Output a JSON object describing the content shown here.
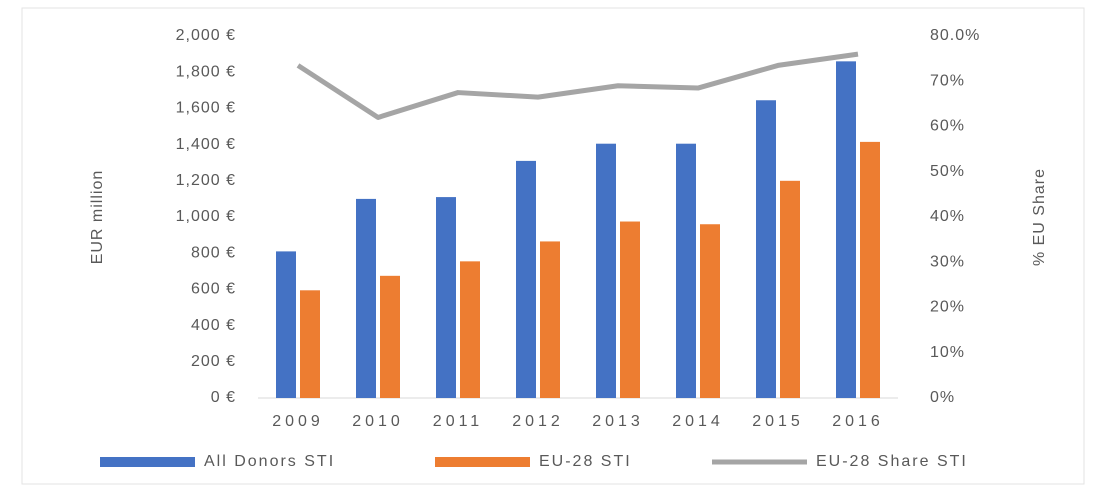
{
  "chart_data": {
    "type": "bar",
    "categories": [
      "2009",
      "2010",
      "2011",
      "2012",
      "2013",
      "2014",
      "2015",
      "2016"
    ],
    "series": [
      {
        "name": "All Donors STI",
        "color": "#4472c4",
        "type": "bar",
        "values": [
          810,
          1100,
          1110,
          1310,
          1405,
          1405,
          1645,
          1860
        ]
      },
      {
        "name": "EU-28 STI",
        "color": "#ed7d31",
        "type": "bar",
        "values": [
          595,
          675,
          755,
          865,
          975,
          960,
          1200,
          1415
        ]
      },
      {
        "name": "EU-28 Share STI",
        "color": "#a5a5a5",
        "type": "line",
        "axis": "y2",
        "values": [
          73.5,
          62,
          67.5,
          66.5,
          69,
          68.5,
          73.5,
          76
        ]
      }
    ],
    "y_label": "EUR million",
    "y2_label": "% EU Share",
    "ylim": [
      0,
      2000
    ],
    "yticks": [
      {
        "value": 0,
        "label": "0 €"
      },
      {
        "value": 200,
        "label": "200 €"
      },
      {
        "value": 400,
        "label": "400 €"
      },
      {
        "value": 600,
        "label": "600 €"
      },
      {
        "value": 800,
        "label": "800 €"
      },
      {
        "value": 1000,
        "label": "1,000 €"
      },
      {
        "value": 1200,
        "label": "1,200 €"
      },
      {
        "value": 1400,
        "label": "1,400 €"
      },
      {
        "value": 1600,
        "label": "1,600 €"
      },
      {
        "value": 1800,
        "label": "1,800 €"
      },
      {
        "value": 2000,
        "label": "2,000 €"
      }
    ],
    "y2lim": [
      0,
      80
    ],
    "y2ticks": [
      {
        "value": 0,
        "label": "0%"
      },
      {
        "value": 10,
        "label": "10%"
      },
      {
        "value": 20,
        "label": "20%"
      },
      {
        "value": 30,
        "label": "30%"
      },
      {
        "value": 40,
        "label": "40%"
      },
      {
        "value": 50,
        "label": "50%"
      },
      {
        "value": 60,
        "label": "60%"
      },
      {
        "value": 70,
        "label": "70%"
      },
      {
        "value": 80,
        "label": "80.0%"
      }
    ],
    "grid": false,
    "legend": "bottom"
  }
}
